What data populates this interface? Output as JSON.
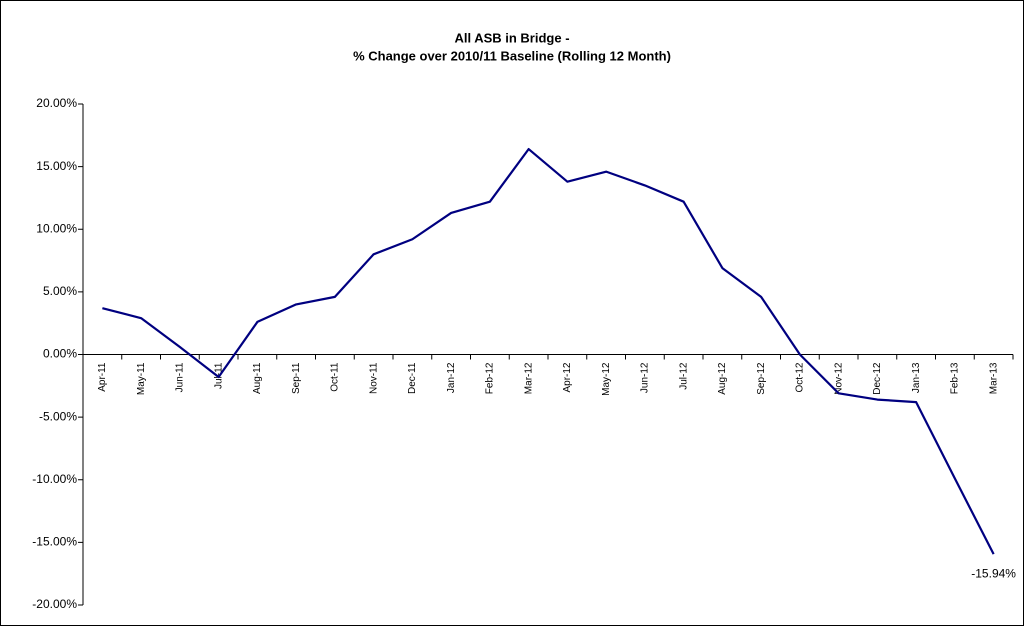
{
  "chart_data": {
    "type": "line",
    "title": [
      "All ASB in Bridge -",
      "% Change over 2010/11 Baseline (Rolling 12 Month)"
    ],
    "categories": [
      "Apr-11",
      "May-11",
      "Jun-11",
      "Jul-11",
      "Aug-11",
      "Sep-11",
      "Oct-11",
      "Nov-11",
      "Dec-11",
      "Jan-12",
      "Feb-12",
      "Mar-12",
      "Apr-12",
      "May-12",
      "Jun-12",
      "Jul-12",
      "Aug-12",
      "Sep-12",
      "Oct-12",
      "Nov-12",
      "Dec-12",
      "Jan-13",
      "Feb-13",
      "Mar-13"
    ],
    "series": [
      {
        "name": "All ASB",
        "color": "#000080",
        "values": [
          3.7,
          2.9,
          0.6,
          -1.8,
          2.6,
          4.0,
          4.6,
          8.0,
          9.2,
          11.3,
          12.2,
          16.4,
          13.8,
          14.6,
          13.5,
          12.2,
          6.9,
          4.6,
          0.0,
          -3.1,
          -3.6,
          -3.8,
          -9.9,
          -15.94
        ],
        "value_labels": [
          null,
          null,
          null,
          null,
          null,
          null,
          null,
          null,
          null,
          null,
          null,
          null,
          null,
          null,
          null,
          null,
          null,
          null,
          null,
          null,
          null,
          null,
          null,
          "-15.94%"
        ]
      }
    ],
    "ylim": [
      -20,
      20
    ],
    "yticks": [
      {
        "value": 20,
        "label": "20.00%"
      },
      {
        "value": 15,
        "label": "15.00%"
      },
      {
        "value": 10,
        "label": "10.00%"
      },
      {
        "value": 5,
        "label": "5.00%"
      },
      {
        "value": 0,
        "label": "0.00%"
      },
      {
        "value": -5,
        "label": "-5.00%"
      },
      {
        "value": -10,
        "label": "-10.00%"
      },
      {
        "value": -15,
        "label": "-15.00%"
      },
      {
        "value": -20,
        "label": "-20.00%"
      }
    ],
    "grid": false
  }
}
